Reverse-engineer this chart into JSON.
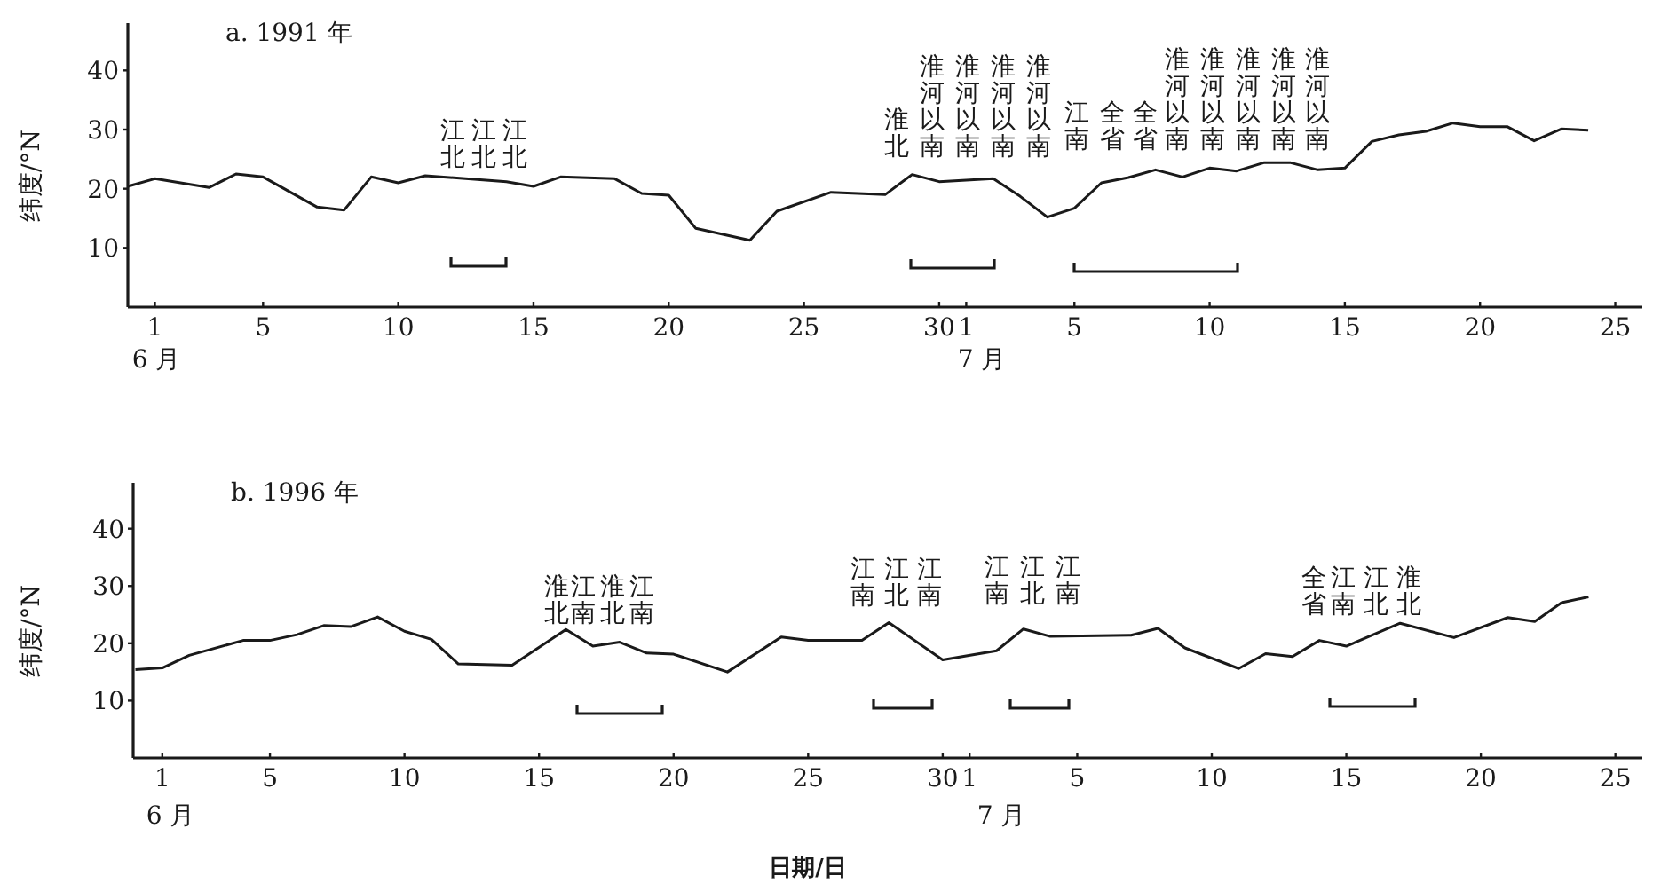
{
  "chart_data": [
    {
      "type": "line",
      "title": "a. 1991 年",
      "ylabel": "纬度/°N",
      "xlim": [
        "1991-05-31",
        "1991-07-26"
      ],
      "ylim": [
        0,
        48
      ],
      "xticks": [
        {
          "value": "1991-06-01",
          "label": "1"
        },
        {
          "value": "1991-06-05",
          "label": "5"
        },
        {
          "value": "1991-06-10",
          "label": "10"
        },
        {
          "value": "1991-06-15",
          "label": "15"
        },
        {
          "value": "1991-06-20",
          "label": "20"
        },
        {
          "value": "1991-06-25",
          "label": "25"
        },
        {
          "value": "1991-06-30",
          "label": "30"
        },
        {
          "value": "1991-07-01",
          "label": "1"
        },
        {
          "value": "1991-07-05",
          "label": "5"
        },
        {
          "value": "1991-07-10",
          "label": "10"
        },
        {
          "value": "1991-07-15",
          "label": "15"
        },
        {
          "value": "1991-07-20",
          "label": "20"
        },
        {
          "value": "1991-07-25",
          "label": "25"
        }
      ],
      "yticks": [
        10,
        20,
        30,
        40
      ],
      "grid": false,
      "marker": "none",
      "line_style": "solid",
      "series": [
        {
          "color": "#1a1a1a",
          "x": [
            "1991-05-31",
            "1991-06-01",
            "1991-06-03",
            "1991-06-04",
            "1991-06-05",
            "1991-06-07",
            "1991-06-08",
            "1991-06-09",
            "1991-06-10",
            "1991-06-11",
            "1991-06-14",
            "1991-06-15",
            "1991-06-16",
            "1991-06-18",
            "1991-06-19",
            "1991-06-20",
            "1991-06-21",
            "1991-06-23",
            "1991-06-24",
            "1991-06-26",
            "1991-06-28",
            "1991-06-29",
            "1991-06-30",
            "1991-07-02",
            "1991-07-03",
            "1991-07-04",
            "1991-07-05",
            "1991-07-06",
            "1991-07-07",
            "1991-07-08",
            "1991-07-09",
            "1991-07-10",
            "1991-07-11",
            "1991-07-12",
            "1991-07-13",
            "1991-07-14",
            "1991-07-15",
            "1991-07-16",
            "1991-07-17",
            "1991-07-18",
            "1991-07-19",
            "1991-07-20",
            "1991-07-21",
            "1991-07-22",
            "1991-07-23",
            "1991-07-24"
          ],
          "values": [
            20.4,
            21.7,
            20.2,
            22.5,
            22.0,
            16.9,
            16.4,
            22.0,
            21.0,
            22.2,
            21.2,
            20.4,
            22.0,
            21.7,
            19.2,
            18.9,
            13.3,
            11.3,
            16.2,
            19.4,
            19.0,
            22.4,
            21.2,
            21.7,
            18.7,
            15.2,
            16.7,
            21.0,
            21.9,
            23.2,
            22.0,
            23.5,
            23.0,
            24.4,
            24.4,
            23.2,
            23.5,
            28.0,
            29.1,
            29.7,
            31.1,
            30.5,
            30.5,
            28.1,
            30.1,
            29.9
          ]
        }
      ],
      "annotations": [
        "6 月",
        "7 月",
        "江北",
        "江北",
        "江北",
        "淮北",
        "淮河以南",
        "淮河以南",
        "淮河以南",
        "淮河以南",
        "江南",
        "全省",
        "全省",
        "淮河以南",
        "淮河以南",
        "淮河以南",
        "淮河以南",
        "淮河以南"
      ]
    },
    {
      "type": "line",
      "title": "b. 1996 年",
      "ylabel": "纬度/°N",
      "xlabel": "日期/日",
      "xlim": [
        "1996-05-30T22:00",
        "1996-07-26"
      ],
      "ylim": [
        0,
        48
      ],
      "xticks": [
        {
          "value": "1996-06-01",
          "label": "1"
        },
        {
          "value": "1996-06-05",
          "label": "5"
        },
        {
          "value": "1996-06-10",
          "label": "10"
        },
        {
          "value": "1996-06-15",
          "label": "15"
        },
        {
          "value": "1996-06-20",
          "label": "20"
        },
        {
          "value": "1996-06-25",
          "label": "25"
        },
        {
          "value": "1996-06-30",
          "label": "30"
        },
        {
          "value": "1996-07-01",
          "label": "1"
        },
        {
          "value": "1996-07-05",
          "label": "5"
        },
        {
          "value": "1996-07-10",
          "label": "10"
        },
        {
          "value": "1996-07-15",
          "label": "15"
        },
        {
          "value": "1996-07-20",
          "label": "20"
        },
        {
          "value": "1996-07-25",
          "label": "25"
        }
      ],
      "yticks": [
        10,
        20,
        30,
        40
      ],
      "grid": false,
      "marker": "none",
      "line_style": "solid",
      "series": [
        {
          "color": "#1a1a1a",
          "x": [
            "1996-05-31",
            "1996-06-01",
            "1996-06-02",
            "1996-06-04",
            "1996-06-05",
            "1996-06-06",
            "1996-06-07",
            "1996-06-08",
            "1996-06-09",
            "1996-06-10",
            "1996-06-11",
            "1996-06-12",
            "1996-06-14",
            "1996-06-16",
            "1996-06-17",
            "1996-06-18",
            "1996-06-19",
            "1996-06-20",
            "1996-06-22",
            "1996-06-24",
            "1996-06-25",
            "1996-06-27",
            "1996-06-28",
            "1996-06-30",
            "1996-07-02",
            "1996-07-03",
            "1996-07-04",
            "1996-07-07",
            "1996-07-08",
            "1996-07-09",
            "1996-07-11",
            "1996-07-12",
            "1996-07-13",
            "1996-07-14",
            "1996-07-15",
            "1996-07-17",
            "1996-07-19",
            "1996-07-21",
            "1996-07-22",
            "1996-07-23",
            "1996-07-24"
          ],
          "values": [
            15.4,
            15.7,
            17.9,
            20.5,
            20.5,
            21.5,
            23.1,
            22.9,
            24.6,
            22.1,
            20.7,
            16.4,
            16.2,
            22.4,
            19.5,
            20.2,
            18.3,
            18.1,
            15.0,
            21.1,
            20.5,
            20.5,
            23.6,
            17.1,
            18.7,
            22.5,
            21.2,
            21.4,
            22.6,
            19.2,
            15.6,
            18.2,
            17.7,
            20.5,
            19.5,
            23.5,
            21.0,
            24.5,
            23.8,
            27.1,
            28.1
          ]
        }
      ],
      "annotations": [
        "6 月",
        "7 月",
        "淮北",
        "江南",
        "淮北",
        "江南",
        "江南",
        "江北",
        "江南",
        "江南",
        "江北",
        "江南",
        "全省",
        "江南",
        "江北",
        "淮北"
      ]
    }
  ]
}
